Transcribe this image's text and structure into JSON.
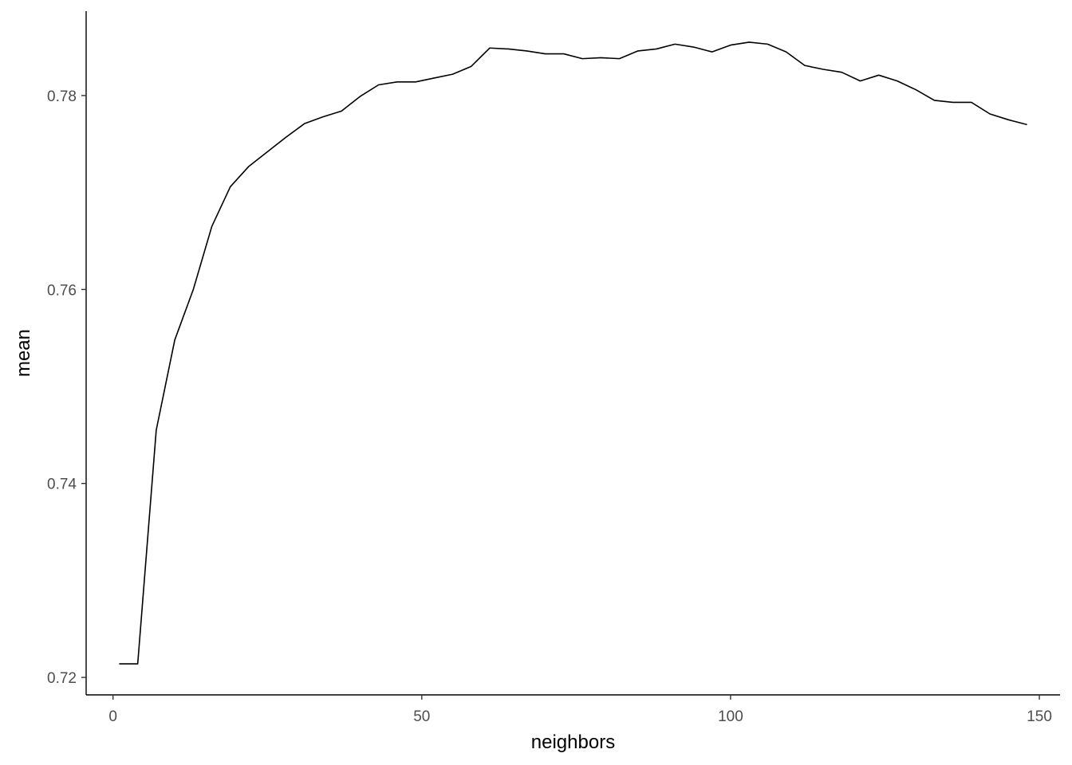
{
  "chart_data": {
    "type": "line",
    "title": "",
    "xlabel": "neighbors",
    "ylabel": "mean",
    "xlim": [
      -4.35,
      153.35
    ],
    "ylim": [
      0.7182,
      0.7887
    ],
    "x_ticks": [
      0,
      50,
      100,
      150
    ],
    "x_tick_labels": [
      "0",
      "50",
      "100",
      "150"
    ],
    "y_ticks": [
      0.72,
      0.74,
      0.76,
      0.78
    ],
    "y_tick_labels": [
      "0.72",
      "0.74",
      "0.76",
      "0.78"
    ],
    "grid": false,
    "legend": "none",
    "line_color": "#000000",
    "series": [
      {
        "x": [
          1,
          4,
          7,
          10,
          13,
          16,
          19,
          22,
          25,
          28,
          31,
          34,
          37,
          40,
          43,
          46,
          49,
          52,
          55,
          58,
          61,
          64,
          67,
          70,
          73,
          76,
          79,
          82,
          85,
          88,
          91,
          94,
          97,
          100,
          103,
          106,
          109,
          112,
          115,
          118,
          121,
          124,
          127,
          130,
          133,
          136,
          139,
          142,
          145,
          148
        ],
        "y": [
          0.7214,
          0.7214,
          0.7455,
          0.7548,
          0.76,
          0.7665,
          0.7706,
          0.7727,
          0.7742,
          0.7757,
          0.7771,
          0.7778,
          0.7784,
          0.7799,
          0.7811,
          0.7814,
          0.7814,
          0.7818,
          0.7822,
          0.783,
          0.7849,
          0.7848,
          0.7846,
          0.7843,
          0.7843,
          0.7838,
          0.7839,
          0.7838,
          0.7846,
          0.7848,
          0.7853,
          0.785,
          0.7845,
          0.7852,
          0.7855,
          0.7853,
          0.7845,
          0.7831,
          0.7827,
          0.7824,
          0.7815,
          0.7821,
          0.7815,
          0.7806,
          0.7795,
          0.7793,
          0.7793,
          0.7781,
          0.7775,
          0.777
        ]
      }
    ]
  }
}
